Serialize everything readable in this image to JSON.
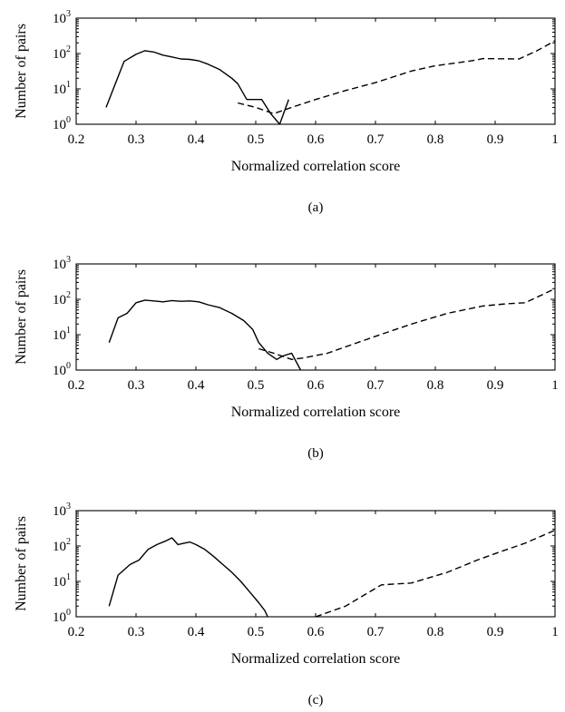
{
  "chart_data": [
    {
      "type": "line",
      "panel_label": "(a)",
      "xlabel": "Normalized correlation score",
      "ylabel": "Number of pairs",
      "xlim": [
        0.2,
        1.0
      ],
      "ylim": [
        1,
        1000
      ],
      "y_scale": "log",
      "x_ticks": [
        "0.2",
        "0.3",
        "0.4",
        "0.5",
        "0.6",
        "0.7",
        "0.8",
        "0.9",
        "1"
      ],
      "y_ticks": [
        {
          "base": "10",
          "exp": "0"
        },
        {
          "base": "10",
          "exp": "1"
        },
        {
          "base": "10",
          "exp": "2"
        },
        {
          "base": "10",
          "exp": "3"
        }
      ],
      "grid": false,
      "series": [
        {
          "style": "solid",
          "x": [
            0.25,
            0.28,
            0.3,
            0.315,
            0.33,
            0.345,
            0.36,
            0.375,
            0.39,
            0.405,
            0.42,
            0.44,
            0.46,
            0.47,
            0.485,
            0.5,
            0.51,
            0.525,
            0.54,
            0.555
          ],
          "y": [
            3,
            60,
            95,
            120,
            110,
            90,
            80,
            70,
            68,
            62,
            50,
            35,
            20,
            14,
            5,
            5,
            5,
            2,
            1,
            5
          ]
        },
        {
          "style": "dashed",
          "x": [
            0.47,
            0.5,
            0.53,
            0.56,
            0.6,
            0.65,
            0.7,
            0.76,
            0.8,
            0.86,
            0.88,
            0.94,
            0.97,
            1.0
          ],
          "y": [
            4,
            3,
            2,
            3,
            5,
            9,
            15,
            32,
            45,
            62,
            72,
            70,
            120,
            230
          ]
        }
      ]
    },
    {
      "type": "line",
      "panel_label": "(b)",
      "xlabel": "Normalized correlation score",
      "ylabel": "Number of pairs",
      "xlim": [
        0.2,
        1.0
      ],
      "ylim": [
        1,
        1000
      ],
      "y_scale": "log",
      "x_ticks": [
        "0.2",
        "0.3",
        "0.4",
        "0.5",
        "0.6",
        "0.7",
        "0.8",
        "0.9",
        "1"
      ],
      "y_ticks": [
        {
          "base": "10",
          "exp": "0"
        },
        {
          "base": "10",
          "exp": "1"
        },
        {
          "base": "10",
          "exp": "2"
        },
        {
          "base": "10",
          "exp": "3"
        }
      ],
      "grid": false,
      "series": [
        {
          "style": "solid",
          "x": [
            0.255,
            0.27,
            0.285,
            0.3,
            0.315,
            0.33,
            0.345,
            0.36,
            0.375,
            0.39,
            0.405,
            0.42,
            0.44,
            0.46,
            0.48,
            0.495,
            0.505,
            0.52,
            0.535,
            0.545,
            0.56,
            0.575
          ],
          "y": [
            6,
            30,
            40,
            80,
            95,
            90,
            85,
            92,
            88,
            90,
            85,
            70,
            58,
            40,
            25,
            14,
            6,
            3,
            2,
            2.5,
            3,
            1
          ]
        },
        {
          "style": "dashed",
          "x": [
            0.505,
            0.53,
            0.56,
            0.58,
            0.62,
            0.7,
            0.76,
            0.82,
            0.88,
            0.92,
            0.95,
            1.0
          ],
          "y": [
            4,
            3,
            2,
            2.2,
            3,
            9,
            20,
            40,
            65,
            75,
            80,
            200
          ]
        }
      ]
    },
    {
      "type": "line",
      "panel_label": "(c)",
      "xlabel": "Normalized correlation score",
      "ylabel": "Number of pairs",
      "xlim": [
        0.2,
        1.0
      ],
      "ylim": [
        1,
        1000
      ],
      "y_scale": "log",
      "x_ticks": [
        "0.2",
        "0.3",
        "0.4",
        "0.5",
        "0.6",
        "0.7",
        "0.8",
        "0.9",
        "1"
      ],
      "y_ticks": [
        {
          "base": "10",
          "exp": "0"
        },
        {
          "base": "10",
          "exp": "1"
        },
        {
          "base": "10",
          "exp": "2"
        },
        {
          "base": "10",
          "exp": "3"
        }
      ],
      "grid": false,
      "series": [
        {
          "style": "solid",
          "x": [
            0.255,
            0.27,
            0.29,
            0.305,
            0.32,
            0.335,
            0.35,
            0.36,
            0.37,
            0.38,
            0.39,
            0.4,
            0.415,
            0.43,
            0.445,
            0.46,
            0.475,
            0.49,
            0.505,
            0.515,
            0.52
          ],
          "y": [
            2,
            15,
            30,
            40,
            80,
            110,
            140,
            170,
            110,
            120,
            130,
            110,
            80,
            50,
            30,
            18,
            10,
            5,
            2.5,
            1.5,
            1
          ]
        },
        {
          "style": "dashed",
          "x": [
            0.6,
            0.65,
            0.68,
            0.71,
            0.76,
            0.82,
            0.87,
            0.91,
            0.95,
            0.98,
            1.0
          ],
          "y": [
            1,
            2,
            4,
            8,
            9,
            18,
            40,
            70,
            120,
            200,
            280
          ]
        }
      ]
    }
  ]
}
